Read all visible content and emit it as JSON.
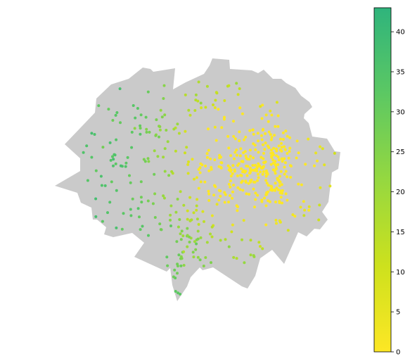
{
  "figure": {
    "background": "#ffffff",
    "region_fill": "#cacaca"
  },
  "colorbar": {
    "min": 0,
    "max": 43,
    "ticks": [
      0,
      5,
      10,
      15,
      20,
      25,
      30,
      35,
      40
    ],
    "tick_labels": [
      "0",
      "5",
      "10",
      "15",
      "20",
      "25",
      "30",
      "35",
      "40"
    ],
    "colors": {
      "low": "#fde725",
      "mid": "#7ad151",
      "high": "#2fb47c"
    }
  },
  "points": {
    "count_estimate": 600,
    "value_range": [
      0,
      42
    ],
    "dominant_center_values": "low (yellow)",
    "peripheral_values": "high (green)"
  }
}
